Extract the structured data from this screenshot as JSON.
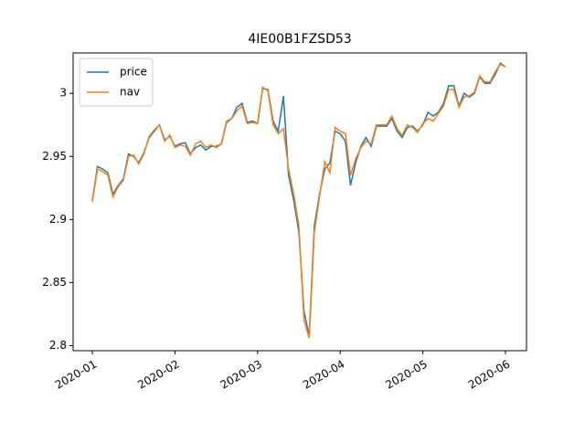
{
  "chart_data": {
    "type": "line",
    "title": "4IE00B1FZSD53",
    "xticks": [
      "2020-01",
      "2020-02",
      "2020-03",
      "2020-04",
      "2020-05",
      "2020-06"
    ],
    "ylim": [
      2.796,
      3.032
    ],
    "yticks": [
      2.8,
      2.85,
      2.9,
      2.95,
      3.0
    ],
    "grid": false,
    "legend": "upper left",
    "series": [
      {
        "name": "price",
        "color": "#1f77b4",
        "values": [
          2.915,
          2.942,
          2.94,
          2.937,
          2.92,
          2.927,
          2.932,
          2.952,
          2.95,
          2.945,
          2.953,
          2.965,
          2.97,
          2.975,
          2.963,
          2.966,
          2.958,
          2.96,
          2.961,
          2.952,
          2.957,
          2.959,
          2.955,
          2.958,
          2.958,
          2.96,
          2.977,
          2.98,
          2.989,
          2.992,
          2.977,
          2.978,
          2.976,
          3.004,
          3.003,
          2.978,
          2.97,
          2.998,
          2.935,
          2.915,
          2.89,
          2.827,
          2.808,
          2.895,
          2.92,
          2.94,
          2.945,
          2.97,
          2.968,
          2.962,
          2.927,
          2.945,
          2.958,
          2.965,
          2.958,
          2.974,
          2.974,
          2.974,
          2.98,
          2.97,
          2.965,
          2.973,
          2.974,
          2.97,
          2.975,
          2.985,
          2.982,
          2.985,
          2.992,
          3.006,
          3.006,
          2.99,
          3.0,
          2.997,
          3.0,
          3.013,
          3.008,
          3.008,
          3.015,
          3.024,
          3.021
        ]
      },
      {
        "name": "nav",
        "color": "#ff7f0e",
        "values": [
          2.914,
          2.94,
          2.938,
          2.935,
          2.918,
          2.926,
          2.931,
          2.95,
          2.951,
          2.944,
          2.952,
          2.966,
          2.971,
          2.975,
          2.962,
          2.967,
          2.957,
          2.959,
          2.958,
          2.951,
          2.96,
          2.962,
          2.957,
          2.959,
          2.957,
          2.96,
          2.978,
          2.98,
          2.986,
          2.99,
          2.976,
          2.977,
          2.976,
          3.005,
          3.002,
          2.975,
          2.968,
          2.972,
          2.94,
          2.92,
          2.895,
          2.82,
          2.806,
          2.89,
          2.918,
          2.946,
          2.937,
          2.973,
          2.97,
          2.968,
          2.935,
          2.948,
          2.957,
          2.962,
          2.96,
          2.975,
          2.975,
          2.975,
          2.982,
          2.972,
          2.967,
          2.975,
          2.973,
          2.969,
          2.976,
          2.98,
          2.978,
          2.984,
          2.99,
          3.003,
          3.003,
          2.989,
          2.997,
          2.998,
          3.001,
          3.014,
          3.009,
          3.009,
          3.017,
          3.023,
          3.021
        ]
      }
    ]
  }
}
